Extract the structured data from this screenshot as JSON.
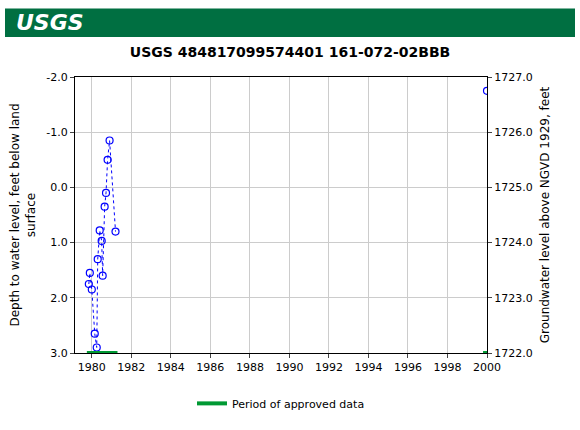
{
  "header": "USGS",
  "chart_data": {
    "type": "scatter",
    "title": "USGS 484817099574401 161-072-02BBB",
    "ylabel": [
      "Depth to water level, feet below land",
      "surface"
    ],
    "y2label": "Groundwater level above NGVD 1929, feet",
    "x": [
      1979.85,
      1979.9,
      1980.0,
      1980.15,
      1980.25,
      1980.3,
      1980.4,
      1980.5,
      1980.55,
      1980.65,
      1980.72,
      1980.8,
      1980.9,
      1981.2,
      null,
      2000.0
    ],
    "series": [
      {
        "name": "Depth to water level",
        "color": "#0000ff",
        "marker": "circle-open",
        "line_style": "dot",
        "values": [
          1.75,
          1.55,
          1.85,
          2.65,
          2.9,
          1.3,
          0.78,
          0.97,
          1.6,
          0.35,
          0.1,
          -0.5,
          -0.85,
          0.8,
          null,
          -1.75
        ]
      }
    ],
    "approved_periods": {
      "name": "Period of approved data",
      "color": "#009933",
      "ranges": [
        [
          1979.75,
          1981.3
        ],
        [
          1999.8,
          2000.0
        ]
      ]
    },
    "xlim": [
      1979.15,
      2000
    ],
    "xticks": [
      1980,
      1982,
      1984,
      1986,
      1988,
      1990,
      1992,
      1994,
      1996,
      1998,
      2000
    ],
    "ylim": [
      3.0,
      -2.0
    ],
    "yticks": [
      {
        "value": -2,
        "label": "-2.0"
      },
      {
        "value": -1,
        "label": "-1.0"
      },
      {
        "value": 0,
        "label": "0.0"
      },
      {
        "value": 1,
        "label": "1.0"
      },
      {
        "value": 2,
        "label": "2.0"
      },
      {
        "value": 3,
        "label": "3.0"
      }
    ],
    "y2lim": [
      1722.0,
      1727.0
    ],
    "y2ticks": [
      {
        "value": 1722,
        "label": "1722.0"
      },
      {
        "value": 1723,
        "label": "1723.0"
      },
      {
        "value": 1724,
        "label": "1724.0"
      },
      {
        "value": 1725,
        "label": "1725.0"
      },
      {
        "value": 1726,
        "label": "1726.0"
      },
      {
        "value": 1727,
        "label": "1727.0"
      }
    ],
    "grid": true,
    "legend": "bottom"
  }
}
